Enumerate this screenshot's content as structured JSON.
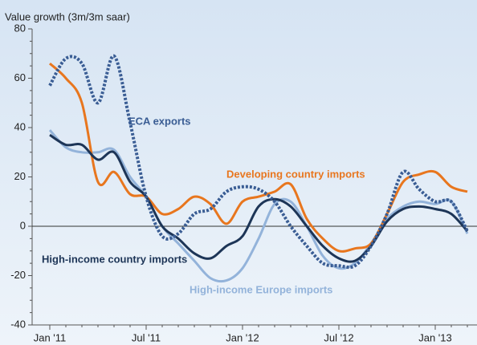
{
  "chart_data": {
    "type": "line",
    "title": "Value growth (3m/3m saar)",
    "x": [
      0,
      1,
      2,
      3,
      4,
      5,
      6,
      7,
      8,
      9,
      10,
      11,
      12,
      13,
      14,
      15,
      16,
      17,
      18,
      19,
      20,
      21,
      22,
      23,
      24,
      25,
      26
    ],
    "xlim": [
      -1.1,
      26.6
    ],
    "xticks": [
      {
        "value": 0,
        "label": "Jan '11"
      },
      {
        "value": 6,
        "label": "Jul '11"
      },
      {
        "value": 12,
        "label": "Jan '12"
      },
      {
        "value": 18,
        "label": "Jul '12"
      },
      {
        "value": 24,
        "label": "Jan '13"
      }
    ],
    "ylim": [
      -40,
      80
    ],
    "yticks": [
      -40,
      -20,
      0,
      20,
      40,
      60,
      80
    ],
    "series": [
      {
        "name": "ECA exports",
        "color": "#3a5d94",
        "dashed": true,
        "values": [
          57,
          68,
          66,
          50,
          69,
          42,
          12,
          -4,
          -3,
          5,
          7,
          14,
          16,
          15,
          10,
          0,
          -8,
          -15,
          -16,
          -16,
          -8,
          5,
          22,
          15,
          10,
          10,
          -2
        ]
      },
      {
        "name": "Developing country imports",
        "color": "#e8761e",
        "values": [
          66,
          60,
          50,
          18,
          22,
          13,
          12,
          5,
          7,
          12,
          9,
          1,
          10,
          12,
          14,
          17,
          3,
          -5,
          -10,
          -9,
          -7,
          5,
          18,
          21,
          22,
          16,
          14
        ]
      },
      {
        "name": "High-income country imports",
        "color": "#1d3557",
        "values": [
          37,
          33,
          33,
          27,
          30,
          18,
          12,
          0,
          -5,
          -11,
          -13,
          -8,
          -4,
          8,
          11,
          8,
          0,
          -8,
          -13,
          -14,
          -8,
          2,
          7,
          8,
          7,
          5,
          -2
        ]
      },
      {
        "name": "High-income Europe imports",
        "color": "#93b3da",
        "values": [
          39,
          32,
          30,
          30,
          31,
          20,
          12,
          0,
          -7,
          -14,
          -21,
          -22,
          -17,
          -5,
          9,
          10,
          0,
          -12,
          -17,
          -15,
          -7,
          3,
          8,
          10,
          9,
          10,
          -3
        ]
      }
    ]
  }
}
